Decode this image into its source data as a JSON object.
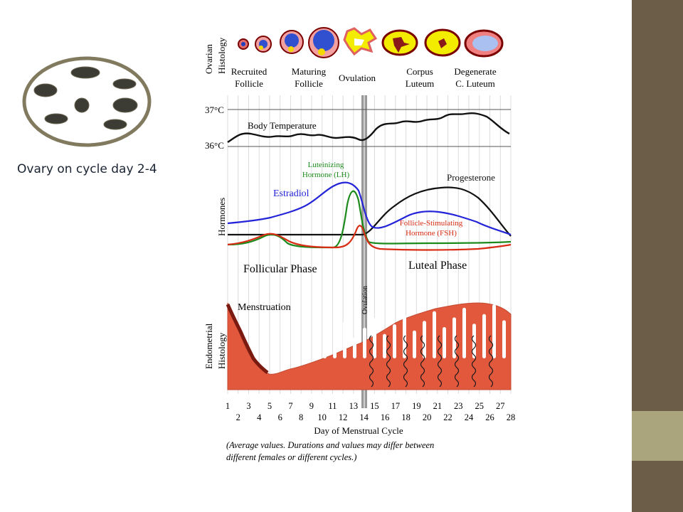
{
  "slide": {
    "caption": "Ovary on cycle day 2-4",
    "colors": {
      "accent_dark": "#6b5d47",
      "accent_light": "#aba57e",
      "ovary_outline": "#827a5f",
      "follicle_fill": "#3c3c34"
    }
  },
  "ovary_icon": {
    "name": "ovary-with-follicles-icon",
    "follicle_count": 7
  },
  "figure": {
    "histology_label": [
      "Ovarian",
      "Histology"
    ],
    "stages": [
      {
        "line1": "Recruited",
        "line2": "Follicle"
      },
      {
        "line1": "Maturing",
        "line2": "Follicle"
      },
      {
        "line1": "Ovulation",
        "line2": ""
      },
      {
        "line1": "Corpus",
        "line2": "Luteum"
      },
      {
        "line1": "Degenerate",
        "line2": "C. Luteum"
      }
    ],
    "temperature": {
      "high": "37°C",
      "low": "36°C",
      "label": "Body Temperature"
    },
    "hormones_label": "Hormones",
    "hormones": {
      "lh": [
        "Luteinizing",
        "Hormone (LH)"
      ],
      "estradiol": "Estradiol",
      "progesterone": "Progesterone",
      "fsh": [
        "Follicle-Stimulating",
        "Hormone (FSH)"
      ],
      "colors": {
        "lh": "#1c8a1c",
        "estradiol": "#2424d8",
        "progesterone": "#111111",
        "fsh": "#d82c14"
      }
    },
    "phases": {
      "follicular": "Follicular Phase",
      "luteal": "Luteal Phase",
      "ovulation": "Ovulation"
    },
    "endometrial_label": [
      "Endometrial",
      "Histology"
    ],
    "menstruation": "Menstruation",
    "days_top": [
      "1",
      "3",
      "5",
      "7",
      "9",
      "11",
      "13",
      "15",
      "17",
      "19",
      "21",
      "23",
      "25",
      "27"
    ],
    "days_bottom": [
      "2",
      "4",
      "6",
      "8",
      "10",
      "12",
      "14",
      "16",
      "18",
      "20",
      "22",
      "24",
      "26",
      "28"
    ],
    "axis_label": "Day of Menstrual Cycle",
    "note": [
      "(Average values. Durations and values may differ between",
      "different females or different cycles.)"
    ]
  }
}
